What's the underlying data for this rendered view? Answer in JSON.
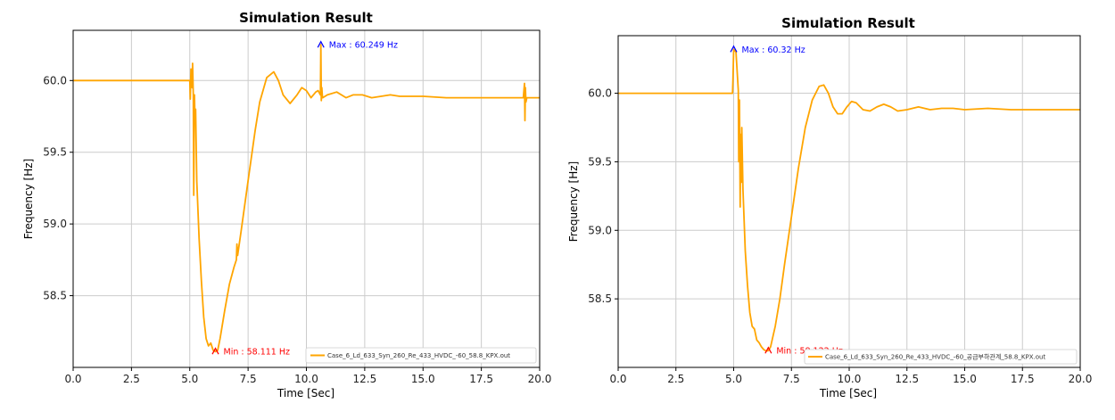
{
  "chart_data": [
    {
      "type": "line",
      "title": "Simulation Result",
      "xlabel": "Time [Sec]",
      "ylabel": "Frequency [Hz]",
      "xlim": [
        0,
        20
      ],
      "ylim": [
        58.0,
        60.35
      ],
      "xticks": [
        "0.0",
        "2.5",
        "5.0",
        "7.5",
        "10.0",
        "12.5",
        "15.0",
        "17.5",
        "20.0"
      ],
      "yticks": [
        "58.5",
        "59.0",
        "59.5",
        "60.0"
      ],
      "grid": true,
      "legend_position": "bottom-right",
      "series": [
        {
          "name": "Case_6_Ld_633_Syn_260_Re_433_HVDC_-60_58.8_KPX.out",
          "color": "#ffa500",
          "x": [
            0,
            5.0,
            5.02,
            5.05,
            5.1,
            5.12,
            5.15,
            5.17,
            5.2,
            5.22,
            5.25,
            5.3,
            5.4,
            5.5,
            5.6,
            5.7,
            5.8,
            5.9,
            6.0,
            6.1,
            6.2,
            6.3,
            6.5,
            6.7,
            6.9,
            7.0,
            7.02,
            7.05,
            7.2,
            7.5,
            7.8,
            8.0,
            8.3,
            8.6,
            8.8,
            9.0,
            9.3,
            9.6,
            9.8,
            10.0,
            10.2,
            10.4,
            10.5,
            10.6,
            10.62,
            10.64,
            10.66,
            10.68,
            10.7,
            10.9,
            11.3,
            11.7,
            12.0,
            12.4,
            12.8,
            13.2,
            13.6,
            14.0,
            14.5,
            15.0,
            16.0,
            17.0,
            18.0,
            19.0,
            19.3,
            19.35,
            19.37,
            19.39,
            19.41,
            19.45,
            20.0
          ],
          "values": [
            60.0,
            60.0,
            59.87,
            60.08,
            59.95,
            60.12,
            59.9,
            59.2,
            59.9,
            59.75,
            59.8,
            59.3,
            58.9,
            58.6,
            58.35,
            58.2,
            58.15,
            58.17,
            58.12,
            58.11,
            58.12,
            58.2,
            58.4,
            58.58,
            58.7,
            58.75,
            58.86,
            58.78,
            58.95,
            59.3,
            59.65,
            59.85,
            60.02,
            60.06,
            60.0,
            59.9,
            59.84,
            59.9,
            59.95,
            59.93,
            59.88,
            59.92,
            59.93,
            59.9,
            60.249,
            59.86,
            59.95,
            59.9,
            59.88,
            59.9,
            59.92,
            59.88,
            59.9,
            59.9,
            59.88,
            59.89,
            59.9,
            59.89,
            59.89,
            59.89,
            59.88,
            59.88,
            59.88,
            59.88,
            59.88,
            59.98,
            59.72,
            59.95,
            59.85,
            59.88,
            59.88
          ]
        }
      ],
      "annotations": [
        {
          "text": "Max : 60.249 Hz",
          "x": 10.62,
          "y": 60.249,
          "color": "#0000ff"
        },
        {
          "text": "Min : 58.111 Hz",
          "x": 6.1,
          "y": 58.111,
          "color": "#ff0000"
        }
      ]
    },
    {
      "type": "line",
      "title": "Simulation Result",
      "xlabel": "Time [Sec]",
      "ylabel": "Frequency [Hz]",
      "xlim": [
        0,
        20
      ],
      "ylim": [
        58.0,
        60.42
      ],
      "xticks": [
        "0.0",
        "2.5",
        "5.0",
        "7.5",
        "10.0",
        "12.5",
        "15.0",
        "17.5",
        "20.0"
      ],
      "yticks": [
        "58.5",
        "59.0",
        "59.5",
        "60.0"
      ],
      "grid": true,
      "legend_position": "bottom-right",
      "series": [
        {
          "name": "Case_6_Ld_633_Syn_260_Re_433_HVDC_-60_공급부하관계_58.8_KPX.out",
          "color": "#ffa500",
          "x": [
            0,
            4.95,
            4.97,
            5.0,
            5.1,
            5.2,
            5.22,
            5.25,
            5.28,
            5.3,
            5.33,
            5.35,
            5.4,
            5.5,
            5.6,
            5.7,
            5.8,
            5.9,
            6.0,
            6.1,
            6.2,
            6.3,
            6.4,
            6.5,
            6.6,
            6.8,
            7.0,
            7.2,
            7.5,
            7.8,
            8.1,
            8.4,
            8.7,
            8.9,
            9.1,
            9.3,
            9.5,
            9.7,
            9.9,
            10.1,
            10.3,
            10.6,
            10.9,
            11.2,
            11.5,
            11.8,
            12.1,
            12.5,
            13.0,
            13.5,
            14.0,
            14.5,
            15.0,
            16.0,
            17.0,
            18.0,
            19.0,
            20.0
          ],
          "values": [
            60.0,
            60.0,
            60.1,
            60.32,
            60.3,
            60.02,
            59.5,
            59.95,
            59.17,
            59.7,
            59.35,
            59.75,
            59.3,
            58.85,
            58.6,
            58.4,
            58.3,
            58.28,
            58.2,
            58.18,
            58.15,
            58.13,
            58.12,
            58.122,
            58.15,
            58.3,
            58.5,
            58.75,
            59.1,
            59.45,
            59.75,
            59.95,
            60.05,
            60.06,
            60.0,
            59.9,
            59.85,
            59.85,
            59.9,
            59.94,
            59.93,
            59.88,
            59.87,
            59.9,
            59.92,
            59.9,
            59.87,
            59.88,
            59.9,
            59.88,
            59.89,
            59.89,
            59.88,
            59.89,
            59.88,
            59.88,
            59.88,
            59.88
          ]
        }
      ],
      "annotations": [
        {
          "text": "Max : 60.32 Hz",
          "x": 5.0,
          "y": 60.32,
          "color": "#0000ff"
        },
        {
          "text": "Min : 58.122 Hz",
          "x": 6.5,
          "y": 58.122,
          "color": "#ff0000"
        }
      ]
    }
  ]
}
